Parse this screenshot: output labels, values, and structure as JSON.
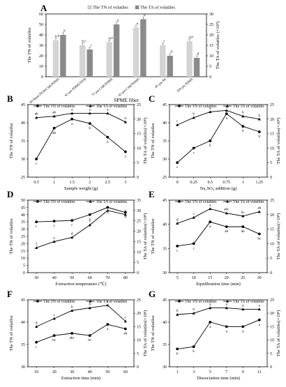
{
  "chart_data": [
    {
      "panel": "A",
      "type": "bar",
      "title": "",
      "legend": [
        "The TN of volatiles",
        "The TA of volatiles"
      ],
      "legend_placement": "top",
      "xlabel": "SPME fiber",
      "ylabel": "The TN of volatiles",
      "y2label": "The TA of volatiles (×10⁸)",
      "categories": [
        "50/30μm DVB/CAR/PDMS",
        "65 μm PDMS/DVB",
        "75 μm CAR/PDMS",
        "85 μm CAR/PDMS",
        "85 μm PA",
        "100 μm PDMS"
      ],
      "ylim": [
        0,
        60
      ],
      "y2lim": [
        0,
        30
      ],
      "yticks": [
        "0",
        "10",
        "20",
        "30",
        "40",
        "50",
        "60"
      ],
      "y2ticks": [
        "0",
        "5",
        "10",
        "15",
        "20",
        "25",
        "30"
      ],
      "series": [
        {
          "name": "The TN of volatiles",
          "color": "#d4d4d4",
          "axis": "left",
          "values": [
            35,
            30,
            33,
            47,
            30,
            34
          ],
          "errors": [
            2,
            2,
            2,
            2,
            2,
            2
          ],
          "labels": [
            "a,b",
            "b,c",
            "a,b",
            "a",
            "c",
            "a,b"
          ]
        },
        {
          "name": "The TA of volatiles",
          "color": "#8a8a8a",
          "axis": "right",
          "values": [
            20,
            13,
            25,
            27.5,
            10,
            9
          ],
          "errors": [
            1,
            1,
            1,
            1,
            1,
            1
          ],
          "labels": [
            "b",
            "c",
            "a",
            "a",
            "d",
            "d"
          ]
        }
      ]
    },
    {
      "panel": "B",
      "type": "line",
      "legend": [
        "The TN of volatiles",
        "The TA of volatiles"
      ],
      "xlabel": "Sample weight (g)",
      "ylabel": "The TN of volatiles",
      "y2label": "The TA of volatiles(×10⁸)",
      "x": [
        "0.5",
        "1",
        "1.5",
        "2",
        "2.5",
        "3"
      ],
      "ylim": [
        25,
        45
      ],
      "yticks": [
        "25",
        "30",
        "35",
        "40",
        "45"
      ],
      "y2lim": [
        0,
        25
      ],
      "y2ticks": [
        "0",
        "5",
        "10",
        "15",
        "20",
        "25"
      ],
      "series": [
        {
          "name": "The TN of volatiles",
          "axis": "left",
          "marker": "circle",
          "values": [
            30,
            38.5,
            41,
            39.8,
            36,
            32
          ],
          "labels": [
            "c",
            "ab",
            "a",
            "b",
            "b",
            "c"
          ]
        },
        {
          "name": "The TA of volatiles",
          "axis": "right",
          "marker": "triangle",
          "values": [
            20.5,
            21,
            22,
            22,
            22,
            19
          ],
          "labels": [
            "ab",
            "ab",
            "a",
            "a",
            "a",
            "b"
          ]
        }
      ]
    },
    {
      "panel": "C",
      "type": "line",
      "legend": [
        "The TN of volatiles",
        "The TA of volatiles"
      ],
      "xlabel": "Na₂SO₄ addition (g)",
      "ylabel": "The TN of volatiles",
      "y2label": "The TA of volatiles(×10⁸)",
      "x": [
        "0",
        "0.25",
        "0.5",
        "0.75",
        "1",
        "1.25"
      ],
      "ylim": [
        25,
        45
      ],
      "yticks": [
        "25",
        "30",
        "35",
        "40",
        "45"
      ],
      "y2lim": [
        0,
        25
      ],
      "y2ticks": [
        "0",
        "5",
        "10",
        "15",
        "20",
        "25"
      ],
      "series": [
        {
          "name": "The TN of volatiles",
          "axis": "left",
          "marker": "circle",
          "values": [
            29,
            33,
            35,
            42.5,
            39,
            37.5
          ],
          "labels": [
            "c",
            "c",
            "b",
            "a",
            "b",
            "b"
          ]
        },
        {
          "name": "The TA of volatiles",
          "axis": "right",
          "marker": "triangle",
          "values": [
            18,
            20.5,
            22.5,
            23,
            21,
            20
          ],
          "labels": [
            "c",
            "b",
            "a",
            "a",
            "b",
            "b"
          ]
        }
      ]
    },
    {
      "panel": "D",
      "type": "line",
      "legend": [
        "The TN of volatiles",
        "The TA of volatiles"
      ],
      "xlabel": "Extraction temperature (℃)",
      "ylabel": "The TN of volatiles",
      "y2label": "The TA of volatiles(×10⁸)",
      "x": [
        "30",
        "40",
        "50",
        "60",
        "70",
        "80"
      ],
      "ylim": [
        0,
        50
      ],
      "yticks": [
        "0",
        "5",
        "10",
        "15",
        "20",
        "25",
        "30",
        "35",
        "40",
        "45",
        "50"
      ],
      "y2lim": [
        0,
        35
      ],
      "y2ticks": [
        "0",
        "5",
        "10",
        "15",
        "20",
        "25",
        "30",
        "35"
      ],
      "series": [
        {
          "name": "The TN of volatiles",
          "axis": "left",
          "marker": "circle",
          "values": [
            35,
            35.5,
            36,
            40,
            45,
            41.5
          ],
          "labels": [
            "c",
            "c",
            "c",
            "b",
            "a",
            "b"
          ]
        },
        {
          "name": "The TA of volatiles",
          "axis": "right",
          "marker": "triangle",
          "values": [
            12,
            15,
            17,
            23,
            30,
            28
          ],
          "labels": [
            "f",
            "e",
            "d",
            "c",
            "a",
            "b"
          ]
        }
      ]
    },
    {
      "panel": "E",
      "type": "line",
      "legend": [
        "The TN of volatiles",
        "The TA of volatiles"
      ],
      "xlabel": "Equilibration time (min)",
      "ylabel": "The TN of volatiles",
      "y2label": "The TA of volatiles(×10⁸)",
      "x": [
        "5",
        "10",
        "15",
        "20",
        "25",
        "30"
      ],
      "ylim": [
        30,
        45
      ],
      "yticks": [
        "30",
        "35",
        "40",
        "45"
      ],
      "y2lim": [
        0,
        25
      ],
      "y2ticks": [
        "0",
        "5",
        "10",
        "15",
        "20",
        "25"
      ],
      "series": [
        {
          "name": "The TN of volatiles",
          "axis": "left",
          "marker": "circle",
          "values": [
            35.5,
            36,
            40.5,
            39.5,
            39.5,
            38
          ],
          "labels": [
            "c",
            "c",
            "a",
            "ab",
            "ab",
            "bc"
          ]
        },
        {
          "name": "The TA of volatiles",
          "axis": "right",
          "marker": "triangle",
          "values": [
            17,
            19,
            22,
            20.5,
            19.5,
            21
          ],
          "labels": [
            "d",
            "c",
            "a",
            "abc",
            "bc",
            "ab"
          ]
        }
      ]
    },
    {
      "panel": "F",
      "type": "line",
      "legend": [
        "The TN of volatiles",
        "The TA of volatiles"
      ],
      "xlabel": "Extraction time (min)",
      "ylabel": "The TN of volatiles",
      "y2label": "The TA of volatiles(×10⁸)",
      "x": [
        "10",
        "20",
        "30",
        "40",
        "50",
        "60"
      ],
      "ylim": [
        30,
        45
      ],
      "yticks": [
        "30",
        "35",
        "40",
        "45"
      ],
      "y2lim": [
        0,
        25
      ],
      "y2ticks": [
        "0",
        "5",
        "10",
        "15",
        "20",
        "25"
      ],
      "series": [
        {
          "name": "The TN of volatiles",
          "axis": "left",
          "marker": "circle",
          "values": [
            35.5,
            37,
            37.5,
            37,
            39.5,
            38.5
          ],
          "labels": [
            "c",
            "bc",
            "abc",
            "bc",
            "a",
            "ab"
          ]
        },
        {
          "name": "The TA of volatiles",
          "axis": "right",
          "marker": "triangle",
          "values": [
            15,
            18,
            21,
            22,
            23,
            17
          ],
          "labels": [
            "d",
            "c",
            "b",
            "b",
            "a",
            "c"
          ]
        }
      ]
    },
    {
      "panel": "G",
      "type": "line",
      "legend": [
        "The TN of volatiles",
        "The TA of volatiles"
      ],
      "xlabel": "Dissociation time (min)",
      "ylabel": "The TN of volatiles",
      "y2label": "The TA of volatiles(×10⁸)",
      "x": [
        "1",
        "3",
        "5",
        "7",
        "9",
        "11"
      ],
      "ylim": [
        30,
        45
      ],
      "yticks": [
        "30",
        "35",
        "40",
        "45"
      ],
      "y2lim": [
        0,
        25
      ],
      "y2ticks": [
        "0",
        "5",
        "10",
        "15",
        "20",
        "25"
      ],
      "series": [
        {
          "name": "The TN of volatiles",
          "axis": "left",
          "marker": "circle",
          "values": [
            34,
            34.5,
            40,
            39,
            39,
            40.5
          ],
          "labels": [
            "b",
            "b",
            "a",
            "a",
            "a",
            "a"
          ]
        },
        {
          "name": "The TA of volatiles",
          "axis": "right",
          "marker": "triangle",
          "values": [
            19.5,
            20,
            22,
            22,
            21.5,
            21.5
          ],
          "labels": [
            "b",
            "b",
            "a",
            "a",
            "a",
            "a"
          ]
        }
      ]
    }
  ]
}
